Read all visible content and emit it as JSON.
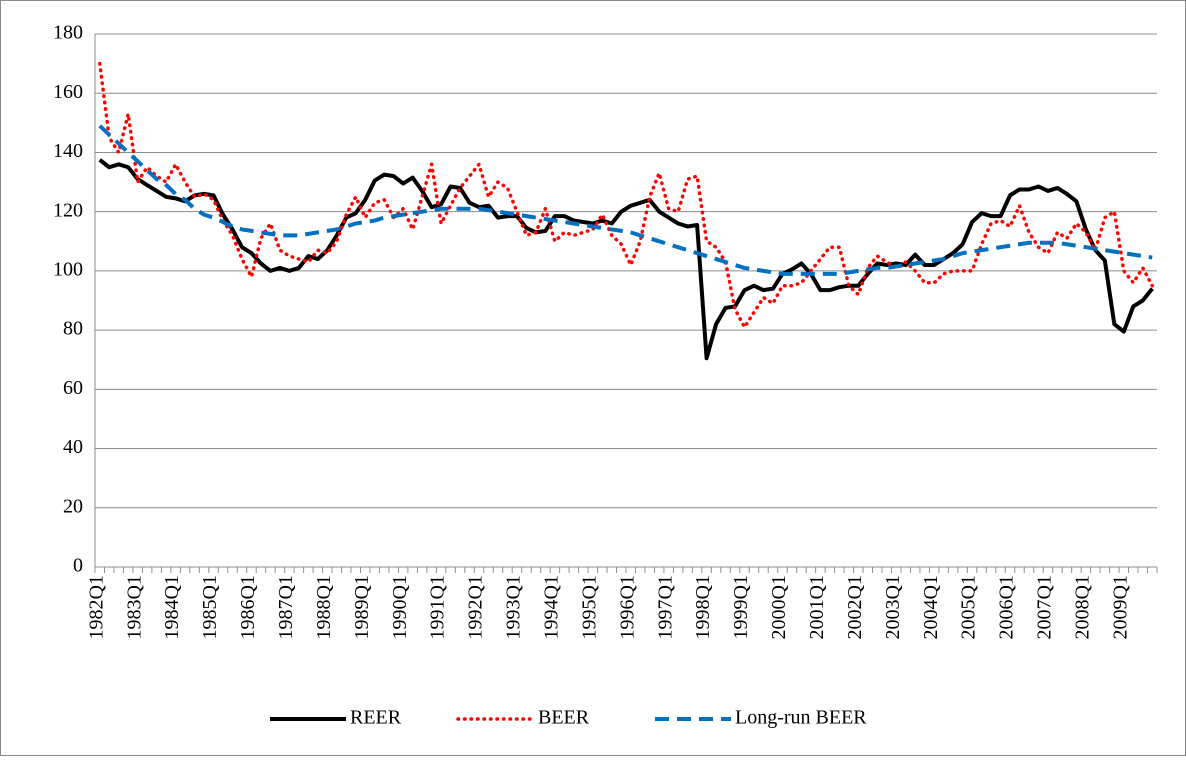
{
  "chart_data": {
    "type": "line",
    "categories": [
      "1982Q1",
      null,
      null,
      null,
      "1983Q1",
      null,
      null,
      null,
      "1984Q1",
      null,
      null,
      null,
      "1985Q1",
      null,
      null,
      null,
      "1986Q1",
      null,
      null,
      null,
      "1987Q1",
      null,
      null,
      null,
      "1988Q1",
      null,
      null,
      null,
      "1989Q1",
      null,
      null,
      null,
      "1990Q1",
      null,
      null,
      null,
      "1991Q1",
      null,
      null,
      null,
      "1992Q1",
      null,
      null,
      null,
      "1993Q1",
      null,
      null,
      null,
      "1994Q1",
      null,
      null,
      null,
      "1995Q1",
      null,
      null,
      null,
      "1996Q1",
      null,
      null,
      null,
      "1997Q1",
      null,
      null,
      null,
      "1998Q1",
      null,
      null,
      null,
      "1999Q1",
      null,
      null,
      null,
      "2000Q1",
      null,
      null,
      null,
      "2001Q1",
      null,
      null,
      null,
      "2002Q1",
      null,
      null,
      null,
      "2003Q1",
      null,
      null,
      null,
      "2004Q1",
      null,
      null,
      null,
      "2005Q1",
      null,
      null,
      null,
      "2006Q1",
      null,
      null,
      null,
      "2007Q1",
      null,
      null,
      null,
      "2008Q1",
      null,
      null,
      null,
      "2009Q1",
      null,
      null,
      null
    ],
    "series": [
      {
        "name": "REER",
        "color": "#000000",
        "dash": "solid",
        "values": [
          137.5,
          135,
          136,
          135,
          131,
          129,
          127,
          125,
          124.5,
          123.5,
          125.5,
          126,
          125.5,
          119,
          114,
          108,
          106,
          102.5,
          100,
          101,
          100,
          101,
          105,
          104,
          107,
          112,
          118,
          119.5,
          124,
          130.5,
          132.5,
          132,
          129.5,
          131.5,
          127,
          121.5,
          122.5,
          128.5,
          128,
          123,
          121.5,
          122,
          118,
          118.5,
          118.5,
          114.5,
          113,
          113.5,
          118.5,
          118.5,
          117,
          116.5,
          116,
          117,
          116,
          120,
          122,
          123,
          124,
          120,
          118,
          116,
          115,
          115.5,
          70.5,
          82,
          87.5,
          88,
          93.5,
          95,
          93.5,
          94,
          99,
          100.5,
          102.5,
          99,
          93.5,
          93.5,
          94.5,
          95,
          95,
          99,
          102.5,
          102,
          102.5,
          102,
          105.5,
          102,
          102,
          104,
          106,
          109,
          116.5,
          119.5,
          118.5,
          118.5,
          125.5,
          127.5,
          127.5,
          128.5,
          127,
          128,
          126,
          123.5,
          114,
          107,
          103.5,
          82,
          79.5,
          88,
          90,
          94
        ]
      },
      {
        "name": "BEER",
        "color": "#ff0000",
        "dash": "dotted",
        "values": [
          170,
          145,
          140,
          153,
          130,
          135,
          132,
          130,
          136,
          130,
          125,
          126,
          124,
          117,
          112,
          104,
          98,
          111,
          116,
          107,
          105,
          104,
          103,
          107,
          106,
          110,
          119,
          125,
          118,
          123,
          124,
          118,
          121,
          114,
          125,
          136,
          116,
          122,
          128,
          132,
          136,
          125,
          130,
          128,
          120,
          112,
          113,
          121,
          110,
          113,
          112,
          113,
          114,
          119,
          112,
          109,
          102,
          110,
          125,
          133,
          121,
          120,
          131,
          132,
          110,
          108,
          103,
          87,
          81,
          86,
          91,
          89,
          95,
          95,
          96,
          100,
          104,
          108,
          108,
          95,
          92,
          101,
          105,
          103,
          101,
          103,
          100,
          96,
          96,
          99,
          100,
          100,
          100,
          109,
          116,
          117,
          115,
          122,
          113,
          108,
          106,
          113,
          111,
          116,
          113,
          107,
          118,
          120,
          100,
          96,
          101,
          95
        ]
      },
      {
        "name": "Long-run BEER",
        "color": "#0070c0",
        "dash": "dashed",
        "values": [
          149,
          146,
          143,
          140,
          137,
          134,
          131,
          129,
          126,
          124,
          121,
          119,
          118,
          116.5,
          115,
          114,
          113.5,
          113,
          112.5,
          112,
          112,
          112,
          112.5,
          113,
          113.5,
          114,
          115,
          116,
          116.5,
          117,
          118,
          118.5,
          119,
          119.5,
          120,
          120.5,
          121,
          121,
          121,
          121,
          121,
          120.5,
          120,
          119.5,
          119,
          118.5,
          118,
          117.5,
          117,
          116.5,
          116,
          115.5,
          115,
          114.5,
          114,
          113.5,
          113,
          112,
          111,
          110,
          109,
          108,
          107,
          106,
          105,
          104,
          103,
          102,
          101,
          100.5,
          100,
          99.5,
          99,
          99,
          99,
          99,
          99,
          99,
          99,
          99.5,
          100,
          100.5,
          101,
          101,
          101.5,
          102,
          102.5,
          103,
          103.5,
          104,
          105,
          106,
          106.5,
          107,
          107.5,
          108,
          108.5,
          109,
          109.5,
          109.5,
          109.5,
          109.5,
          109,
          108.5,
          108,
          107.5,
          107,
          106.5,
          106,
          105.5,
          105,
          104.5
        ]
      }
    ],
    "ylim": [
      0,
      180
    ],
    "yticks": [
      0,
      20,
      40,
      60,
      80,
      100,
      120,
      140,
      160,
      180
    ],
    "grid": true,
    "legend": "bottom"
  }
}
